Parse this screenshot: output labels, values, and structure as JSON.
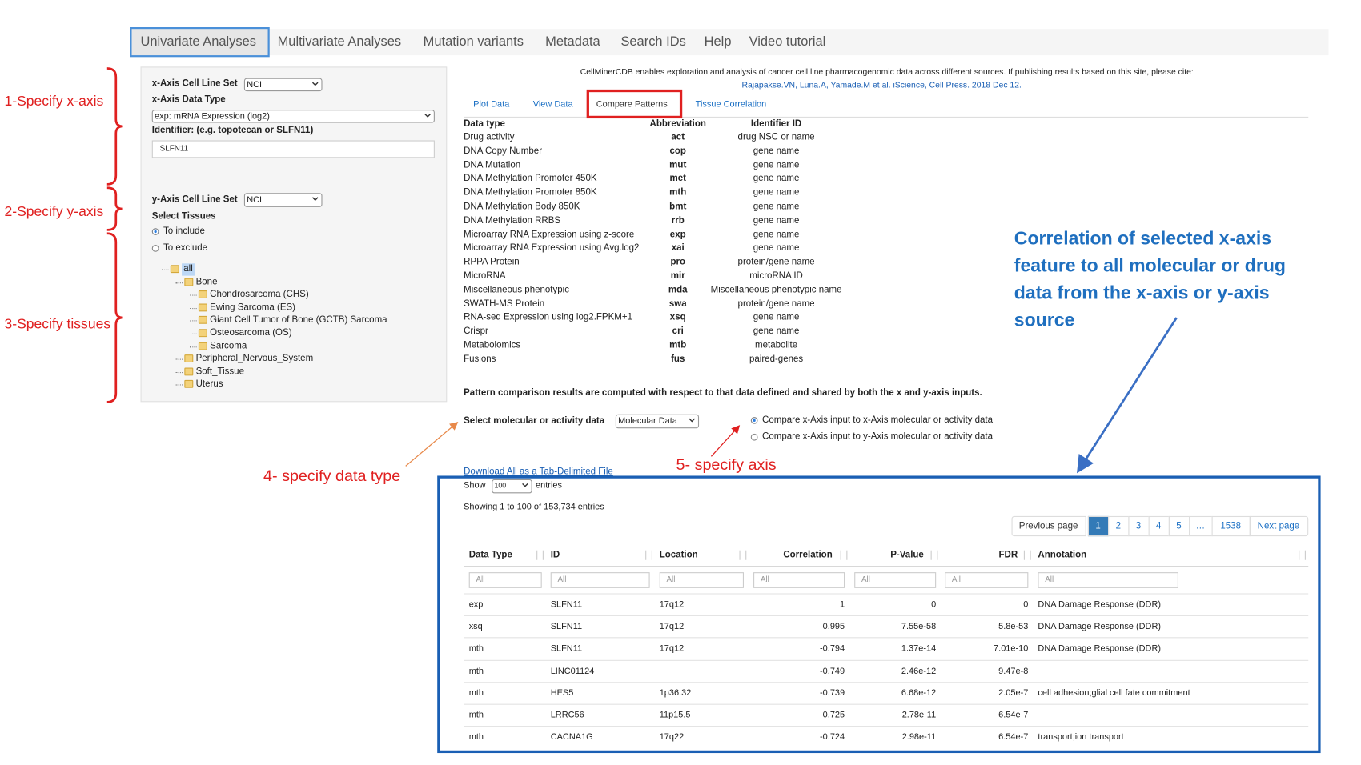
{
  "nav": {
    "tabs": [
      "Univariate Analyses",
      "Multivariate Analyses",
      "Mutation variants",
      "Metadata",
      "Search IDs",
      "Help",
      "Video tutorial"
    ]
  },
  "left_panel": {
    "x_set_label": "x-Axis Cell Line Set",
    "x_set": "NCI",
    "x_type_label": "x-Axis Data Type",
    "x_type": "exp: mRNA Expression (log2)",
    "identifier_label": "Identifier: (e.g. topotecan or SLFN11)",
    "identifier": "SLFN11",
    "y_set_label": "y-Axis Cell Line Set",
    "y_set": "NCI",
    "tissues_label": "Select Tissues",
    "include": "To include",
    "exclude": "To exclude",
    "tree": {
      "label": "all",
      "children": [
        {
          "label": "Bone",
          "children": [
            {
              "label": "Chondrosarcoma (CHS)"
            },
            {
              "label": "Ewing Sarcoma (ES)"
            },
            {
              "label": "Giant Cell Tumor of Bone (GCTB) Sarcoma"
            },
            {
              "label": "Osteosarcoma (OS)"
            },
            {
              "label": "Sarcoma"
            }
          ]
        },
        {
          "label": "Peripheral_Nervous_System"
        },
        {
          "label": "Soft_Tissue"
        },
        {
          "label": "Uterus"
        }
      ]
    }
  },
  "annotations": {
    "x_axis": "1-Specify x-axis",
    "y_axis": "2-Specify y-axis",
    "tissues": "3-Specify tissues",
    "data_type": "4- specify data type",
    "axis": "5- specify axis",
    "callout": [
      "Correlation of selected x-axis",
      "feature to all molecular or drug",
      "data from the x-axis or y-axis",
      "source"
    ]
  },
  "header": {
    "notice": "CellMinerCDB enables exploration and analysis of cancer cell line pharmacogenomic data across different sources. If publishing results based on this site, please cite:",
    "citation": "Rajapakse.VN, Luna.A, Yamade.M et al. iScience, Cell Press. 2018 Dec 12."
  },
  "subtabs": [
    "Plot Data",
    "View Data",
    "Compare Patterns",
    "Tissue Correlation"
  ],
  "type_table": {
    "headers": [
      "Data type",
      "Abbreviation",
      "Identifier ID"
    ],
    "rows": [
      [
        "Drug activity",
        "act",
        "drug NSC or name"
      ],
      [
        "DNA Copy Number",
        "cop",
        "gene name"
      ],
      [
        "DNA Mutation",
        "mut",
        "gene name"
      ],
      [
        "DNA Methylation Promoter 450K",
        "met",
        "gene name"
      ],
      [
        "DNA Methylation Promoter 850K",
        "mth",
        "gene name"
      ],
      [
        "DNA Methylation Body 850K",
        "bmt",
        "gene name"
      ],
      [
        "DNA Methylation RRBS",
        "rrb",
        "gene name"
      ],
      [
        "Microarray RNA Expression using z-score",
        "exp",
        "gene name"
      ],
      [
        "Microarray RNA Expression using Avg.log2",
        "xai",
        "gene name"
      ],
      [
        "RPPA Protein",
        "pro",
        "protein/gene name"
      ],
      [
        "MicroRNA",
        "mir",
        "microRNA ID"
      ],
      [
        "Miscellaneous phenotypic",
        "mda",
        "Miscellaneous phenotypic name"
      ],
      [
        "SWATH-MS Protein",
        "swa",
        "protein/gene name"
      ],
      [
        "RNA-seq Expression using log2.FPKM+1",
        "xsq",
        "gene name"
      ],
      [
        "Crispr",
        "cri",
        "gene name"
      ],
      [
        "Metabolomics",
        "mtb",
        "metabolite"
      ],
      [
        "Fusions",
        "fus",
        "paired-genes"
      ]
    ]
  },
  "pattern_note": "Pattern comparison results are computed with respect to that data defined and shared by both the x and y-axis inputs.",
  "select_label": "Select molecular or activity data",
  "select_value": "Molecular Data",
  "compare_options": [
    "Compare x-Axis input to x-Axis molecular or activity data",
    "Compare x-Axis input to y-Axis molecular or activity data"
  ],
  "download": "Download All as a Tab-Delimited File",
  "show": {
    "label": "Show",
    "value": "100",
    "suffix": "entries"
  },
  "showing": "Showing 1 to 100 of 153,734 entries",
  "pagination": {
    "previous": "Previous page",
    "pages": [
      "1",
      "2",
      "3",
      "4",
      "5",
      "…",
      "1538"
    ],
    "next": "Next page"
  },
  "results": {
    "headers": [
      "Data Type",
      "ID",
      "Location",
      "Correlation",
      "P-Value",
      "FDR",
      "Annotation"
    ],
    "filter": "All",
    "rows": [
      [
        "exp",
        "SLFN11",
        "17q12",
        "1",
        "0",
        "0",
        "DNA Damage Response (DDR)"
      ],
      [
        "xsq",
        "SLFN11",
        "17q12",
        "0.995",
        "7.55e-58",
        "5.8e-53",
        "DNA Damage Response (DDR)"
      ],
      [
        "mth",
        "SLFN11",
        "17q12",
        "-0.794",
        "1.37e-14",
        "7.01e-10",
        "DNA Damage Response (DDR)"
      ],
      [
        "mth",
        "LINC01124",
        null,
        "-0.749",
        "2.46e-12",
        "9.47e-8",
        null
      ],
      [
        "mth",
        "HES5",
        "1p36.32",
        "-0.739",
        "6.68e-12",
        "2.05e-7",
        "cell adhesion;glial cell fate commitment"
      ],
      [
        "mth",
        "LRRC56",
        "11p15.5",
        "-0.725",
        "2.78e-11",
        "6.54e-7",
        null
      ],
      [
        "mth",
        "CACNA1G",
        "17q22",
        "-0.724",
        "2.98e-11",
        "6.54e-7",
        "transport;ion transport"
      ]
    ]
  }
}
